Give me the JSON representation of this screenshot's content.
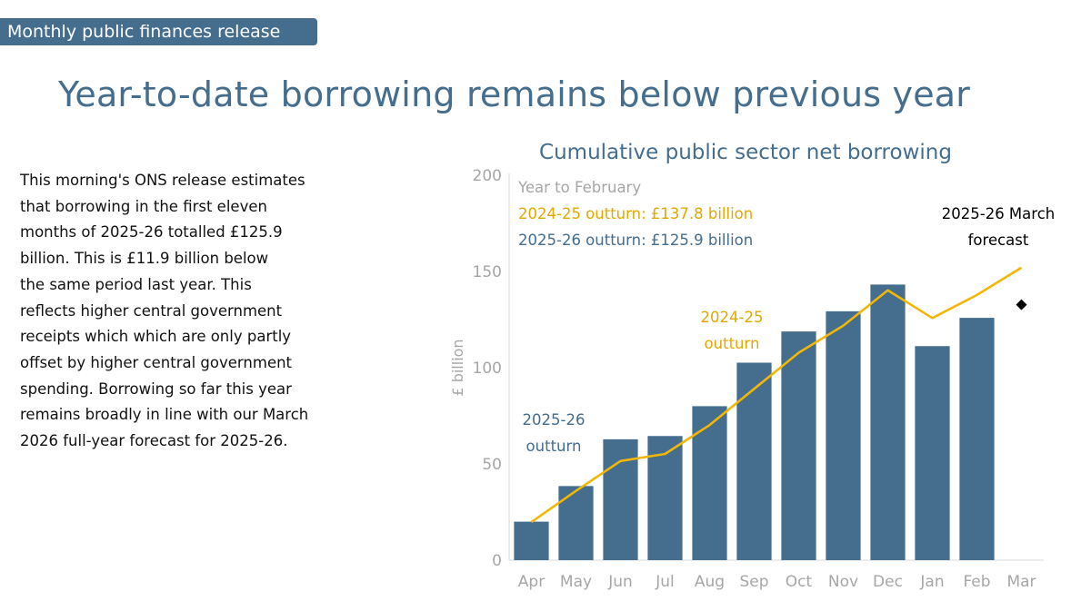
{
  "release_tag": "Monthly public finances release",
  "headline": "Year-to-date borrowing remains below previous year",
  "body_lines": [
    "This morning's ONS release estimates",
    "that borrowing in the first eleven",
    "months of 2025-26 totalled £125.9",
    "billion. This is £11.9 billion below",
    "the same period last year. This",
    "reflects higher central government",
    "receipts which which are only partly",
    "offset by higher central government",
    "spending. Borrowing so far this year",
    "remains broadly in line with our March",
    "2026 full-year forecast for 2025-26."
  ],
  "colors": {
    "bar": "#446d8e",
    "line": "#f2b705",
    "line_text": "#e0a800",
    "axis_text": "#a6a6a6",
    "title": "#446d8e",
    "forecast_marker": "#000000"
  },
  "chart_data": {
    "type": "bar",
    "title": "Cumulative public sector net borrowing",
    "ylabel": "£ billion",
    "ylim": [
      0,
      200
    ],
    "yticks": [
      0,
      50,
      100,
      150,
      200
    ],
    "categories": [
      "Apr",
      "May",
      "Jun",
      "Jul",
      "Aug",
      "Sep",
      "Oct",
      "Nov",
      "Dec",
      "Jan",
      "Feb",
      "Mar"
    ],
    "series": [
      {
        "name": "2025-26 outturn",
        "type": "bar",
        "values": [
          20,
          38.5,
          62.8,
          64.5,
          80,
          102.6,
          118.8,
          129.3,
          143.2,
          111.2,
          125.9,
          null
        ]
      },
      {
        "name": "2024-25 outturn",
        "type": "line",
        "values": [
          19.8,
          36,
          51.5,
          55.2,
          70.2,
          89,
          107.8,
          121.8,
          140.2,
          125.8,
          137.8,
          152
        ]
      },
      {
        "name": "2025-26 March forecast",
        "type": "marker",
        "category": "Mar",
        "value": 132.7
      }
    ],
    "legend_box": {
      "heading": "Year to February",
      "line1": "2024-25 outturn: £137.8 billion",
      "line2": "2025-26 outturn: £125.9 billion"
    },
    "annotations": {
      "bar_label": [
        "2025-26",
        "outturn"
      ],
      "line_label": [
        "2024-25",
        "outturn"
      ],
      "forecast_label": [
        "2025-26 March",
        "forecast"
      ]
    }
  }
}
